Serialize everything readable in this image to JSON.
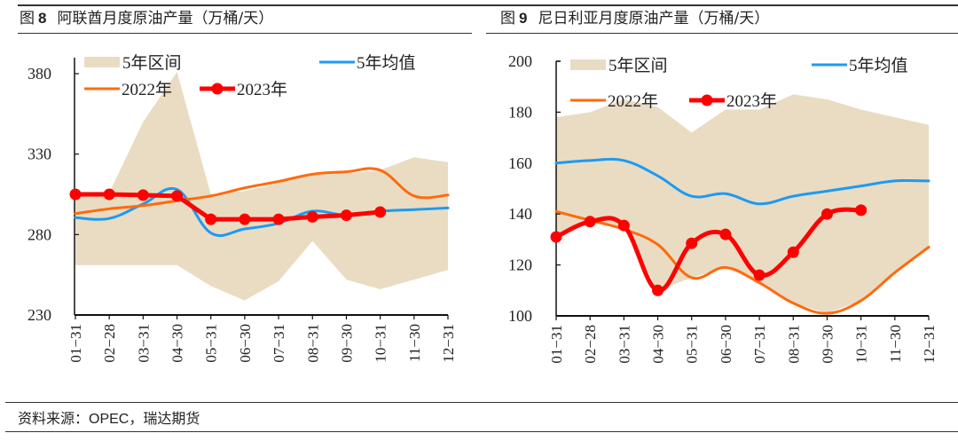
{
  "figures": [
    {
      "label": "图",
      "number": "8",
      "title": "阿联酋月度原油产量（万桶/天）"
    },
    {
      "label": "图",
      "number": "9",
      "title": "尼日利亚月度原油产量（万桶/天）"
    }
  ],
  "footer": {
    "prefix": "资料来源：",
    "source_en": "OPEC",
    "source_rest": "，瑞达期货"
  },
  "colors": {
    "band": "#e9dcc3",
    "avg": "#1e9af0",
    "y2022": "#ff6a0d",
    "y2023": "#ff0000",
    "axis": "#111111"
  },
  "chart_data": [
    {
      "type": "line",
      "title": "阿联酋月度原油产量（万桶/天）",
      "xlabel": "",
      "ylabel": "",
      "categories": [
        "01-31",
        "02-28",
        "03-31",
        "04-30",
        "05-31",
        "06-30",
        "07-31",
        "08-31",
        "09-30",
        "10-31",
        "11-30",
        "12-31"
      ],
      "ylim": [
        230,
        390
      ],
      "yticks": [
        230,
        280,
        330,
        380
      ],
      "legend": [
        "5年区间",
        "5年均值",
        "2022年",
        "2023年"
      ],
      "legend_position": "top",
      "band": {
        "name": "5年区间",
        "upper": [
          306,
          306,
          350,
          381,
          305,
          307,
          312,
          318,
          318,
          320,
          328,
          325
        ],
        "lower": [
          261,
          261,
          261,
          261,
          248,
          239,
          251,
          276,
          252,
          246,
          252,
          258
        ]
      },
      "series": [
        {
          "name": "5年均值",
          "values": [
            290.5,
            290,
            299,
            308,
            281,
            283.5,
            287,
            294.5,
            292,
            294.5,
            295.5,
            296.5
          ]
        },
        {
          "name": "2022年",
          "values": [
            293,
            296,
            298,
            301,
            304,
            309,
            313,
            317.5,
            319,
            320,
            304,
            304.5
          ]
        },
        {
          "name": "2023年",
          "values": [
            305,
            305,
            304.5,
            304,
            289.5,
            289.5,
            289.5,
            291,
            292,
            294,
            null,
            null
          ]
        }
      ]
    },
    {
      "type": "line",
      "title": "尼日利亚月度原油产量（万桶/天）",
      "xlabel": "",
      "ylabel": "",
      "categories": [
        "01-31",
        "02-28",
        "03-31",
        "04-30",
        "05-31",
        "06-30",
        "07-31",
        "08-31",
        "09-30",
        "10-31",
        "11-30",
        "12-31"
      ],
      "ylim": [
        100,
        200
      ],
      "yticks": [
        100,
        120,
        140,
        160,
        180,
        200
      ],
      "legend": [
        "5年区间",
        "5年均值",
        "2022年",
        "2023年"
      ],
      "legend_position": "top",
      "band": {
        "name": "5年区间",
        "upper": [
          178,
          180,
          185,
          182,
          172,
          181,
          181,
          187,
          185,
          181,
          178,
          175
        ],
        "lower": [
          131,
          137,
          135,
          110,
          115,
          119,
          113,
          105,
          101,
          106,
          117,
          127
        ]
      },
      "series": [
        {
          "name": "5年均值",
          "values": [
            160,
            161,
            161,
            155,
            147,
            148,
            144,
            147,
            149,
            151,
            153,
            153
          ]
        },
        {
          "name": "2022年",
          "values": [
            141,
            137.5,
            134,
            128,
            115,
            119,
            113,
            105,
            101,
            106,
            117,
            127
          ]
        },
        {
          "name": "2023年",
          "values": [
            131,
            137,
            135.5,
            110,
            128.5,
            132,
            116,
            125,
            140,
            141.5,
            null,
            null
          ]
        }
      ]
    }
  ]
}
